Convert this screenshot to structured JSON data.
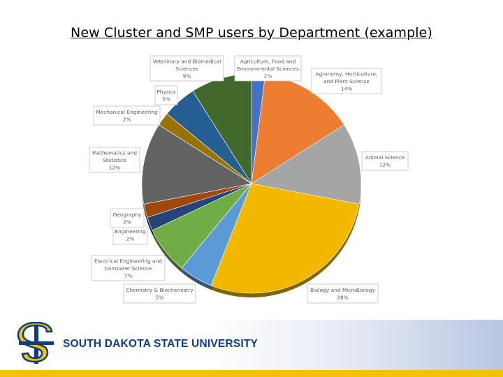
{
  "title": "New Cluster and SMP users by Department (example)",
  "footer": {
    "university": "SOUTH DAKOTA STATE UNIVERSITY"
  },
  "chart_data": {
    "type": "pie",
    "title": "",
    "unit": "%",
    "slices": [
      {
        "name": "Agriculture, Food and Environmental Sciences",
        "label_lines": [
          "Agriculture, Food and",
          "Environmental Sciences"
        ],
        "value": 2,
        "value_label": "2%",
        "color": "#4472c4"
      },
      {
        "name": "Agronomy, Horticulture, and Plant Science",
        "label_lines": [
          "Agronomy, Horticulture,",
          "and Plant Science"
        ],
        "value": 14,
        "value_label": "14%",
        "color": "#ed7d31"
      },
      {
        "name": "Animal Science",
        "label_lines": [
          "Animal Science"
        ],
        "value": 12,
        "value_label": "12%",
        "color": "#a5a5a5"
      },
      {
        "name": "Biology and MicroBiology",
        "label_lines": [
          "Biology and MicroBiology"
        ],
        "value": 28,
        "value_label": "28%",
        "color": "#f2b800"
      },
      {
        "name": "Chemistry & Biochemistry",
        "label_lines": [
          "Chemistry & Biochemistry"
        ],
        "value": 5,
        "value_label": "5%",
        "color": "#5b9bd5"
      },
      {
        "name": "Electrical Engineering and Computer Science",
        "label_lines": [
          "Electrical Engineering and",
          "Computer Science"
        ],
        "value": 7,
        "value_label": "7%",
        "color": "#70ad47"
      },
      {
        "name": "Engineering",
        "label_lines": [
          "Engineering"
        ],
        "value": 2,
        "value_label": "2%",
        "color": "#264478"
      },
      {
        "name": "Geography",
        "label_lines": [
          "Geography"
        ],
        "value": 2,
        "value_label": "2%",
        "color": "#9e480e"
      },
      {
        "name": "Mathematics and Statistics",
        "label_lines": [
          "Mathematics and",
          "Statistics"
        ],
        "value": 12,
        "value_label": "12%",
        "color": "#636363"
      },
      {
        "name": "Mechanical Engineering",
        "label_lines": [
          "Mechanical Engineering"
        ],
        "value": 2,
        "value_label": "2%",
        "color": "#997300"
      },
      {
        "name": "Physics",
        "label_lines": [
          "Physics"
        ],
        "value": 5,
        "value_label": "5%",
        "color": "#255e91"
      },
      {
        "name": "Veterinary and Biomedical Sciences",
        "label_lines": [
          "Veterinary and Biomedical",
          "Sciences"
        ],
        "value": 9,
        "value_label": "9%",
        "color": "#43682b"
      }
    ],
    "legend": "none",
    "label_style": "callouts"
  }
}
